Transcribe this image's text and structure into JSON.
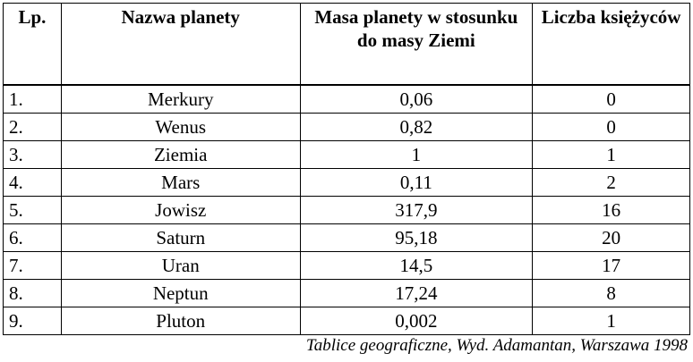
{
  "table": {
    "header": [
      "Lp.",
      "Nazwa planety",
      "Masa planety w stosunku do masy Ziemi",
      "Liczba księżyców"
    ],
    "rows": [
      [
        "1.",
        "Merkury",
        "0,06",
        "0"
      ],
      [
        "2.",
        "Wenus",
        "0,82",
        "0"
      ],
      [
        "3.",
        "Ziemia",
        "1",
        "1"
      ],
      [
        "4.",
        "Mars",
        "0,11",
        "2"
      ],
      [
        "5.",
        "Jowisz",
        "317,9",
        "16"
      ],
      [
        "6.",
        "Saturn",
        "95,18",
        "20"
      ],
      [
        "7.",
        "Uran",
        "14,5",
        "17"
      ],
      [
        "8.",
        "Neptun",
        "17,24",
        "8"
      ],
      [
        "9.",
        "Pluton",
        "0,002",
        "1"
      ]
    ]
  },
  "source": "Tablice geograficzne, Wyd. Adamantan, Warszawa 1998"
}
